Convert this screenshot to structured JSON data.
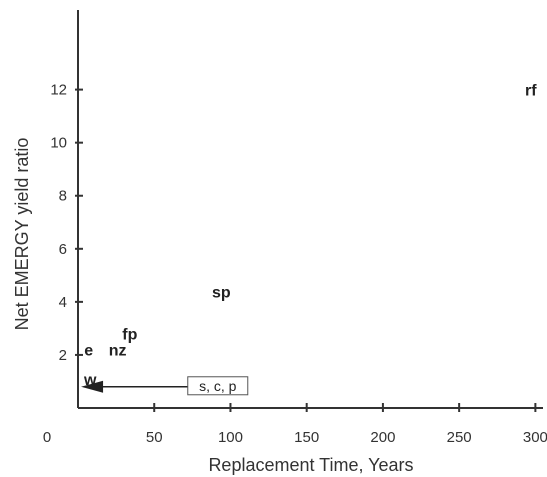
{
  "chart_data": {
    "type": "scatter",
    "title": "",
    "xlabel": "Replacement Time, Years",
    "ylabel": "Net EMERGY yield ratio",
    "xlim": [
      0,
      305
    ],
    "ylim": [
      0,
      15
    ],
    "xticks": [
      0,
      50,
      100,
      150,
      200,
      250,
      300
    ],
    "yticks": [
      2,
      4,
      6,
      8,
      10,
      12
    ],
    "grid": false,
    "points": [
      {
        "label": "e",
        "x": 7,
        "y": 2.2
      },
      {
        "label": "nz",
        "x": 26,
        "y": 2.2
      },
      {
        "label": "fp",
        "x": 34,
        "y": 2.8
      },
      {
        "label": "sp",
        "x": 94,
        "y": 4.4
      },
      {
        "label": "rf",
        "x": 297,
        "y": 12.0
      },
      {
        "label": "w",
        "x": 8,
        "y": 1.1
      }
    ],
    "annotation": {
      "label": "s, c, p",
      "x_start": 72,
      "x_end": 2,
      "y": 0.8
    }
  }
}
